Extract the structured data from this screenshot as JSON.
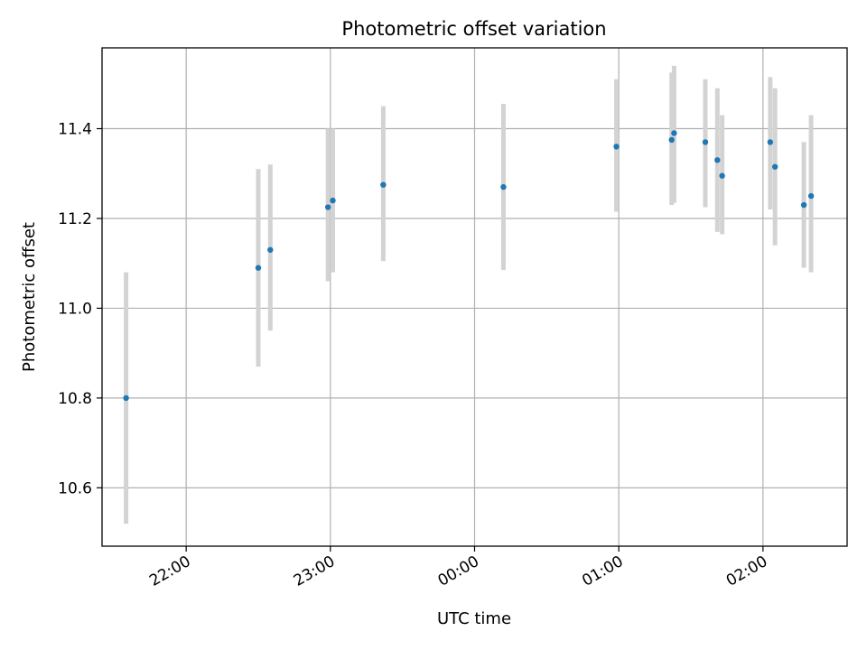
{
  "chart_data": {
    "type": "scatter",
    "title": "Photometric offset variation",
    "xlabel": "UTC time",
    "ylabel": "Photometric offset",
    "x_ticks": [
      "22:00",
      "23:00",
      "00:00",
      "01:00",
      "02:00"
    ],
    "y_ticks": [
      "10.6",
      "10.8",
      "11.0",
      "11.2",
      "11.4"
    ],
    "y_tick_values": [
      10.6,
      10.8,
      11.0,
      11.2,
      11.4
    ],
    "xlim": [
      "21:25",
      "02:35"
    ],
    "ylim": [
      10.47,
      11.58
    ],
    "grid": true,
    "colors": {
      "point": "#1f77b4",
      "errorbar": "#d3d3d3",
      "grid": "#b0b0b0"
    },
    "series": [
      {
        "points": [
          {
            "x": "21:35",
            "y": 10.8,
            "ylow": 10.52,
            "yhigh": 11.08
          },
          {
            "x": "22:30",
            "y": 11.09,
            "ylow": 10.87,
            "yhigh": 11.31
          },
          {
            "x": "22:35",
            "y": 11.13,
            "ylow": 10.95,
            "yhigh": 11.32
          },
          {
            "x": "22:59",
            "y": 11.225,
            "ylow": 11.06,
            "yhigh": 11.4
          },
          {
            "x": "23:01",
            "y": 11.24,
            "ylow": 11.08,
            "yhigh": 11.4
          },
          {
            "x": "23:22",
            "y": 11.275,
            "ylow": 11.105,
            "yhigh": 11.45
          },
          {
            "x": "00:12",
            "y": 11.27,
            "ylow": 11.085,
            "yhigh": 11.455
          },
          {
            "x": "00:59",
            "y": 11.36,
            "ylow": 11.215,
            "yhigh": 11.51
          },
          {
            "x": "01:22",
            "y": 11.375,
            "ylow": 11.23,
            "yhigh": 11.525
          },
          {
            "x": "01:23",
            "y": 11.39,
            "ylow": 11.235,
            "yhigh": 11.54
          },
          {
            "x": "01:36",
            "y": 11.37,
            "ylow": 11.225,
            "yhigh": 11.51
          },
          {
            "x": "01:41",
            "y": 11.33,
            "ylow": 11.17,
            "yhigh": 11.49
          },
          {
            "x": "01:43",
            "y": 11.295,
            "ylow": 11.165,
            "yhigh": 11.43
          },
          {
            "x": "02:03",
            "y": 11.37,
            "ylow": 11.22,
            "yhigh": 11.515
          },
          {
            "x": "02:05",
            "y": 11.315,
            "ylow": 11.14,
            "yhigh": 11.49
          },
          {
            "x": "02:17",
            "y": 11.23,
            "ylow": 11.09,
            "yhigh": 11.37
          },
          {
            "x": "02:20",
            "y": 11.25,
            "ylow": 11.08,
            "yhigh": 11.43
          }
        ]
      }
    ]
  }
}
